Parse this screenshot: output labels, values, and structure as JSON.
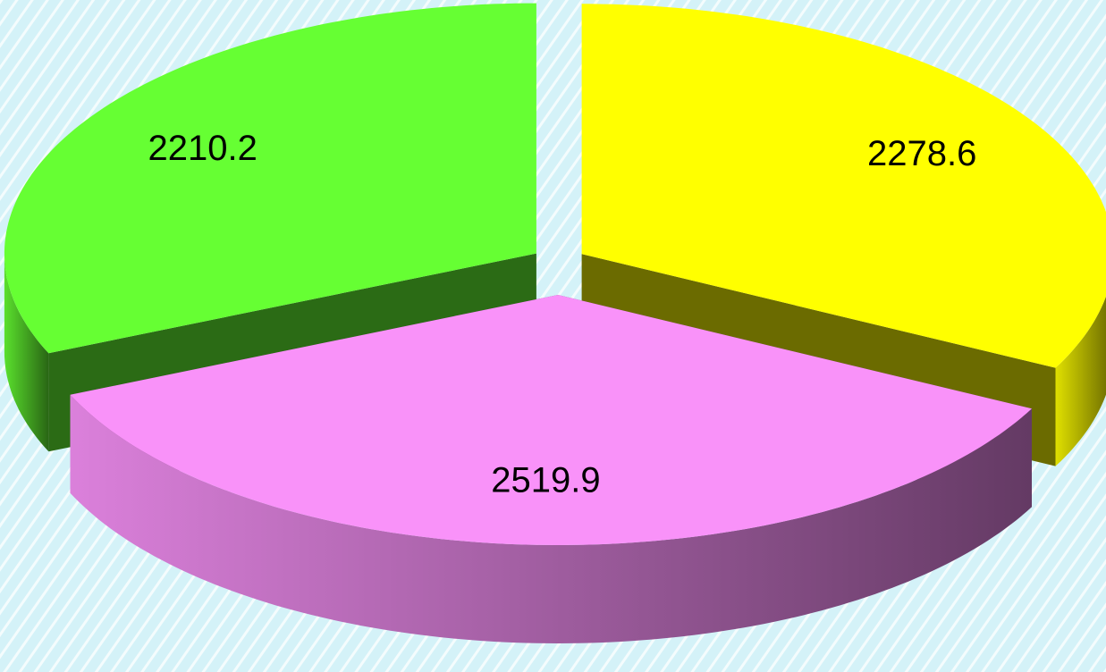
{
  "chart_data": {
    "type": "pie3d",
    "values": [
      2278.6,
      2519.9,
      2210.2
    ],
    "colors": [
      "#ffff00",
      "#f992f9",
      "#66ff33"
    ]
  }
}
